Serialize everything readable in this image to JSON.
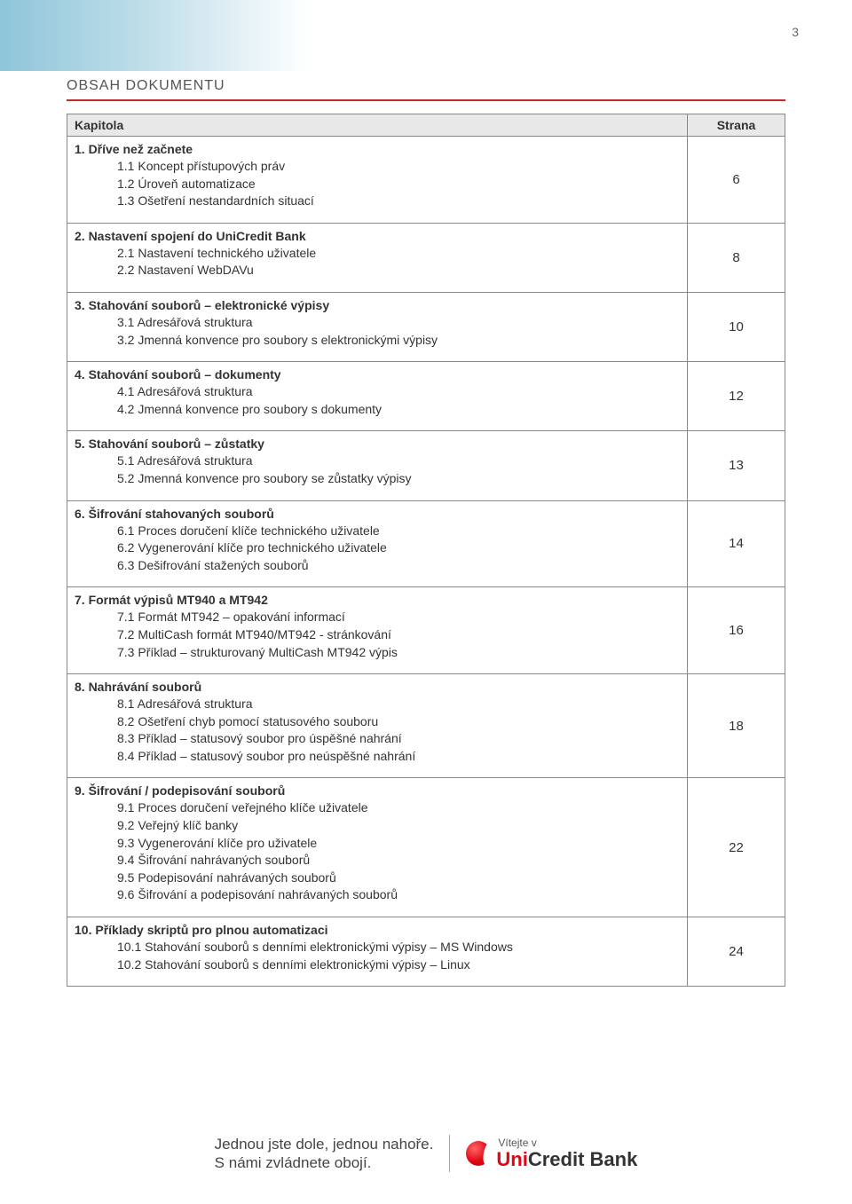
{
  "page_number": "3",
  "section_title": "OBSAH DOKUMENTU",
  "header": {
    "chapter": "Kapitola",
    "page": "Strana"
  },
  "rows": [
    {
      "title": "1. Dříve než začnete",
      "subs": [
        "1.1 Koncept přístupových práv",
        "1.2 Úroveň automatizace",
        "1.3 Ošetření nestandardních situací"
      ],
      "page": "6"
    },
    {
      "title": "2. Nastavení spojení do UniCredit Bank",
      "subs": [
        "2.1 Nastavení technického uživatele",
        "2.2 Nastavení WebDAVu"
      ],
      "page": "8"
    },
    {
      "title": "3. Stahování souborů – elektronické výpisy",
      "subs": [
        "3.1 Adresářová struktura",
        "3.2 Jmenná konvence pro soubory s elektronickými výpisy"
      ],
      "page": "10"
    },
    {
      "title": "4. Stahování souborů – dokumenty",
      "subs": [
        "4.1 Adresářová struktura",
        "4.2 Jmenná konvence pro soubory s dokumenty"
      ],
      "page": "12"
    },
    {
      "title": "5. Stahování souborů – zůstatky",
      "subs": [
        "5.1 Adresářová struktura",
        "5.2 Jmenná konvence pro soubory se zůstatky výpisy"
      ],
      "page": "13"
    },
    {
      "title": "6. Šifrování stahovaných souborů",
      "subs": [
        "6.1 Proces doručení klíče technického uživatele",
        "6.2 Vygenerování klíče pro technického uživatele",
        "6.3 Dešifrování stažených souborů"
      ],
      "page": "14"
    },
    {
      "title": "7. Formát výpisů MT940 a MT942",
      "subs": [
        "7.1 Formát MT942 – opakování informací",
        "7.2 MultiCash formát MT940/MT942 - stránkování",
        "7.3 Příklad – strukturovaný MultiCash MT942 výpis"
      ],
      "page": "16"
    },
    {
      "title": "8. Nahrávání souborů",
      "subs": [
        "8.1 Adresářová struktura",
        "8.2 Ošetření chyb pomocí statusového souboru",
        "8.3 Příklad – statusový soubor pro úspěšné nahrání",
        "8.4 Příklad – statusový soubor pro neúspěšné nahrání"
      ],
      "page": "18"
    },
    {
      "title": "9. Šifrování / podepisování souborů",
      "subs": [
        "9.1 Proces doručení veřejného klíče uživatele",
        "9.2 Veřejný klíč banky",
        "9.3 Vygenerování klíče pro uživatele",
        "9.4 Šifrování nahrávaných souborů",
        "9.5 Podepisování nahrávaných souborů",
        "9.6 Šifrování a podepisování nahrávaných souborů"
      ],
      "page": "22"
    },
    {
      "title": "10. Příklady skriptů pro plnou automatizaci",
      "subs": [
        "10.1 Stahování souborů s denními elektronickými výpisy – MS Windows",
        "10.2 Stahování souborů s denními elektronickými výpisy – Linux"
      ],
      "page": "24"
    }
  ],
  "footer": {
    "line1": "Jednou jste dole, jednou nahoře.",
    "line2": "S námi zvládnete obojí.",
    "logo_top": "Vítejte v",
    "logo_main_prefix": "Uni",
    "logo_main_mid": "Credit ",
    "logo_main_suffix": "Bank"
  },
  "colors": {
    "rule": "#c62828",
    "header_bg": "#e8e8e8",
    "border": "#888888",
    "logo_red": "#e30613"
  }
}
